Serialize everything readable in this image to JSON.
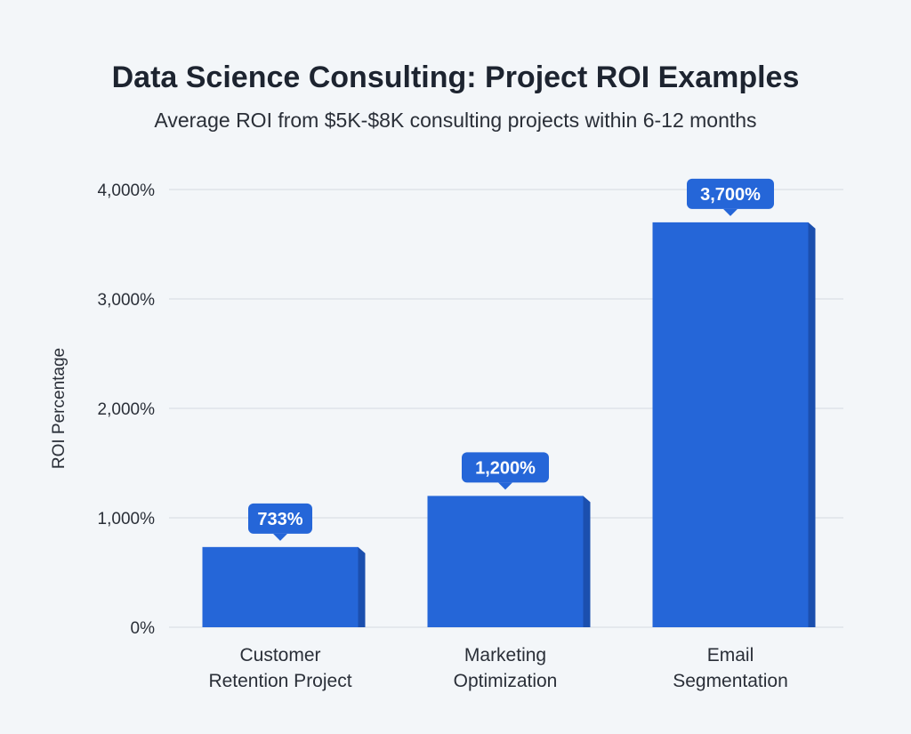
{
  "chart_data": {
    "type": "bar",
    "title": "Data Science Consulting: Project ROI Examples",
    "subtitle": "Average ROI from $5K-$8K consulting projects within 6-12 months",
    "xlabel": "",
    "ylabel": "ROI Percentage",
    "categories": [
      [
        "Customer",
        "Retention Project"
      ],
      [
        "Marketing",
        "Optimization"
      ],
      [
        "Email",
        "Segmentation"
      ]
    ],
    "values": [
      733,
      1200,
      3700
    ],
    "data_labels": [
      "733%",
      "1,200%",
      "3,700%"
    ],
    "ylim": [
      0,
      4000
    ],
    "yticks": [
      0,
      1000,
      2000,
      3000,
      4000
    ],
    "ytick_labels": [
      "0%",
      "1,000%",
      "2,000%",
      "3,000%",
      "4,000%"
    ],
    "grid": true,
    "colors": {
      "bar": "#2566d8",
      "bar_side": "#1b4fae",
      "label_bg": "#2566d8",
      "grid": "#d6dbe1"
    }
  }
}
